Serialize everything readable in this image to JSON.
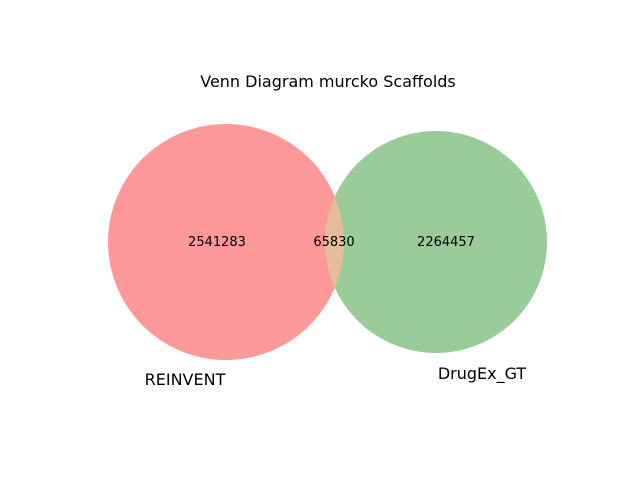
{
  "title": "Venn Diagram murcko Scaffolds",
  "sets": [
    {
      "name": "REINVENT",
      "color": "#ff9999"
    },
    {
      "name": "DrugEx_GT",
      "color": "#99cc99"
    }
  ],
  "regions": {
    "only_a": "2541283",
    "both": "65830",
    "only_b": "2264457"
  },
  "overlap_color": "#e6bd99"
}
